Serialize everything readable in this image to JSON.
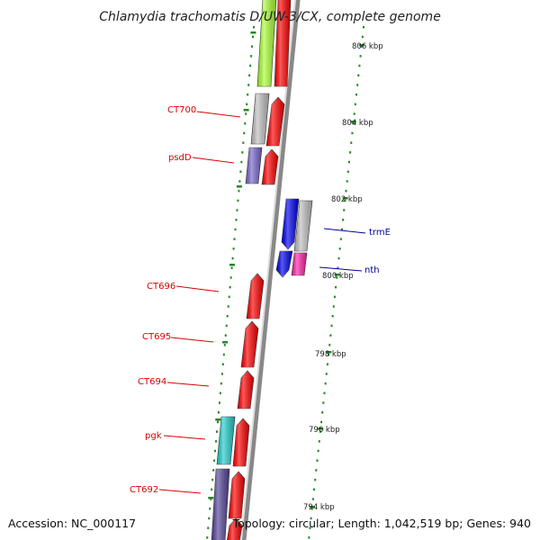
{
  "title": "Chlamydia trachomatis D/UW-3/CX, complete genome",
  "footer": {
    "accession": "Accession: NC_000117",
    "summary": "Topology: circular; Length: 1,042,519 bp; Genes: 940"
  },
  "colors": {
    "backbone": "#888888",
    "tick": "#228822",
    "label_red": "#dd0000",
    "label_blue": "#000099",
    "cds": "#ff0000",
    "gray": "#c0c0c0",
    "lime": "#aaff33",
    "blue": "#0000ee",
    "magenta": "#ff22aa",
    "cyan": "#22cccc",
    "purple": "#7766cc",
    "darkpurple": "#554499"
  },
  "kbp_labels": [
    "806 kbp",
    "804 kbp",
    "802 kbp",
    "800 kbp",
    "798 kbp",
    "796 kbp",
    "794 kbp"
  ],
  "genes": [
    {
      "label": "",
      "color_key": "cds"
    },
    {
      "label": "",
      "color_key": "lime"
    },
    {
      "label": "CT700",
      "color_key": "gray"
    },
    {
      "label": "",
      "color_key": "cds"
    },
    {
      "label": "psdD",
      "color_key": "purple"
    },
    {
      "label": "",
      "color_key": "cds"
    },
    {
      "label": "trmE",
      "color_key": "blue"
    },
    {
      "label": "",
      "color_key": "gray"
    },
    {
      "label": "nth",
      "color_key": "blue"
    },
    {
      "label": "",
      "color_key": "magenta"
    },
    {
      "label": "CT696",
      "color_key": "cds"
    },
    {
      "label": "CT695",
      "color_key": "cds"
    },
    {
      "label": "CT694",
      "color_key": "cds"
    },
    {
      "label": "pgk",
      "color_key": "cyan"
    },
    {
      "label": "",
      "color_key": "cds"
    },
    {
      "label": "CT692",
      "color_key": "darkpurple"
    },
    {
      "label": "",
      "color_key": "cds"
    },
    {
      "label": "",
      "color_key": "cds"
    }
  ]
}
